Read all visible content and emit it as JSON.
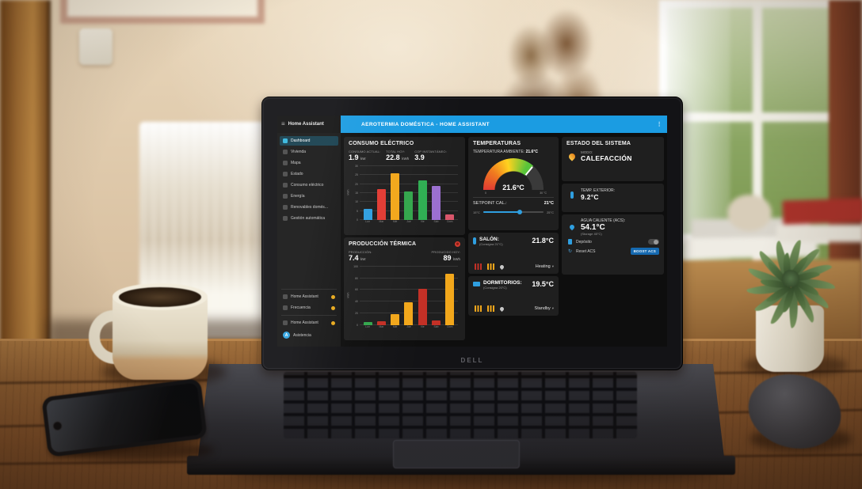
{
  "colors": {
    "titlebar_blue": "#1b9ce2",
    "accent_blue": "#2f9fe0",
    "orange": "#f2a71b",
    "red": "#d23b2f",
    "green": "#33a64c",
    "purple": "#9b6fd0",
    "screen_bg": "#0e0e0e",
    "card_bg": "#1f1f1f",
    "badge_yellow": "#e8a91c",
    "boost_button_blue": "#1569b0"
  },
  "icons": {
    "menu": "≡",
    "kebab": "⋮",
    "chevron_down": "▾",
    "reset": "↻"
  },
  "laptop": {
    "logo": "DELL"
  },
  "app": {
    "sidebar_title": "Home Assistant",
    "titlebar": {
      "title": "AEROTERMIA DOMÉSTICA - HOME ASSISTANT"
    },
    "sidebar": {
      "items": [
        {
          "label": "Dashboard",
          "active": true
        },
        {
          "label": "Vivienda",
          "active": false
        },
        {
          "label": "Mapa",
          "active": false
        },
        {
          "label": "Estado",
          "active": false
        },
        {
          "label": "Consumo eléctrico",
          "active": false
        },
        {
          "label": "Energía",
          "active": false
        },
        {
          "label": "Renovables domés...",
          "active": false
        },
        {
          "label": "Gestión automática",
          "active": false
        }
      ],
      "bottom_items": [
        {
          "label": "Home Assistant",
          "icon": "wrench-icon",
          "badge": true
        },
        {
          "label": "Frecuencia",
          "icon": "gear-icon",
          "badge": true
        },
        {
          "label": "Home Assistant",
          "icon": "bell-icon",
          "badge": true
        }
      ],
      "user": {
        "label": "Asistencia",
        "avatar_letter": "A"
      }
    },
    "consumo": {
      "title": "CONSUMO ELÉCTRICO",
      "stats": [
        {
          "label": "CONSUMO ACTUAL:",
          "value": "1.9",
          "unit": "kW"
        },
        {
          "label": "TOTAL HOY:",
          "value": "22.8",
          "unit": "kWh"
        },
        {
          "label": "COP INSTANTÁNEO:",
          "value": "3.9",
          "unit": ""
        }
      ]
    },
    "produccion": {
      "title": "PRODUCCIÓN TÉRMICA",
      "stats": [
        {
          "label": "PRODUCCIÓN:",
          "value": "7.4",
          "unit": "kW"
        },
        {
          "label": "PRODUCIDO HOY:",
          "value": "89",
          "unit": "kWh"
        }
      ]
    },
    "temperaturas": {
      "title": "TEMPERATURAS",
      "ambient_label": "TEMPERATURA AMBIENTE:",
      "ambient_value": "21.6°C",
      "gauge": {
        "value": 21.6,
        "min": 0,
        "max": 30,
        "display": "21.6°C",
        "min_label": "0",
        "max_label": "30 °C"
      },
      "setpoint": {
        "label": "SETPOINT CAL.:",
        "value": "21°C",
        "min": 15,
        "max": 25,
        "current": 21,
        "min_label": "15°C",
        "max_label": "25°C"
      }
    },
    "salon": {
      "title": "SALÓN:",
      "consigna": "(Consigna 21°C)",
      "temp": "21.8°C",
      "mode": "Heating"
    },
    "dormitorios": {
      "title": "DORMITORIOS:",
      "consigna": "(Consigna 20°C)",
      "temp": "19.5°C",
      "mode": "Standby"
    },
    "estado": {
      "title": "ESTADO DEL SISTEMA",
      "modo_label": "MODO:",
      "modo_value": "CALEFACCIÓN"
    },
    "exterior": {
      "label": "TEMP. EXTERIOR:",
      "value": "9.2°C"
    },
    "acs": {
      "label": "AGUA CALIENTE (ACS):",
      "value": "54.1°C",
      "sub": "(Storage 45°C)",
      "deposito_label": "Depósito",
      "deposito_on": false,
      "reset_label": "Reset ACS",
      "boost_button": "BOOST ACS"
    }
  },
  "chart_data": [
    {
      "type": "bar",
      "title": "Consumo eléctrico semanal",
      "categories": [
        "Lun",
        "Mar",
        "Mié",
        "Jue",
        "Vie",
        "Sáb",
        "Dom"
      ],
      "values": [
        6,
        17,
        26,
        16,
        22,
        19,
        3
      ],
      "colors": [
        "#2f9fe0",
        "#e23b33",
        "#f2a71b",
        "#33a64c",
        "#2fae53",
        "#9b6fd0",
        "#d9566b"
      ],
      "xlabel": "",
      "ylabel": "kWh",
      "ylim": [
        0,
        30
      ],
      "yticks": [
        0,
        5,
        10,
        15,
        20,
        25,
        30
      ],
      "grid": true
    },
    {
      "type": "bar",
      "title": "Producción térmica semanal",
      "categories": [
        "Lun",
        "Mar",
        "Mié",
        "Jue",
        "Vie",
        "Sáb",
        "Dom"
      ],
      "values": [
        5,
        7,
        19,
        39,
        62,
        8,
        87
      ],
      "colors": [
        "#33a64c",
        "#c33026",
        "#f2a71b",
        "#f2a71b",
        "#c33026",
        "#c33026",
        "#f2a71b"
      ],
      "xlabel": "",
      "ylabel": "kWh",
      "ylim": [
        0,
        100
      ],
      "yticks": [
        0,
        20,
        40,
        60,
        80,
        100
      ],
      "grid": true
    },
    {
      "type": "gauge",
      "title": "Temperatura ambiente",
      "value": 21.6,
      "min": 0,
      "max": 30,
      "unit": "°C"
    }
  ]
}
